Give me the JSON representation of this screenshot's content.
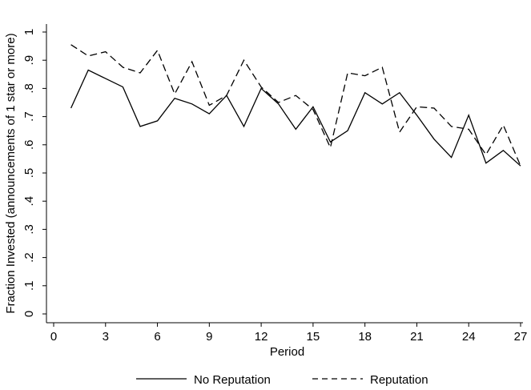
{
  "chart_data": {
    "type": "line",
    "xlabel": "Period",
    "ylabel": "Fraction Invested (announcements of 1 star or more)",
    "xlim": [
      0,
      27
    ],
    "ylim": [
      0,
      1
    ],
    "xticks": [
      0,
      3,
      6,
      9,
      12,
      15,
      18,
      21,
      24,
      27
    ],
    "yticks": [
      0,
      0.1,
      0.2,
      0.3,
      0.4,
      0.5,
      0.6,
      0.7,
      0.8,
      0.9,
      1
    ],
    "xtick_labels": [
      "0",
      "3",
      "6",
      "9",
      "12",
      "15",
      "18",
      "21",
      "24",
      "27"
    ],
    "ytick_labels": [
      "0",
      ".1",
      ".2",
      ".3",
      ".4",
      ".5",
      ".6",
      ".7",
      ".8",
      ".9",
      "1"
    ],
    "grid": false,
    "legend_position": "bottom",
    "x": [
      1,
      2,
      3,
      4,
      5,
      6,
      7,
      8,
      9,
      10,
      11,
      12,
      13,
      14,
      15,
      16,
      17,
      18,
      19,
      20,
      21,
      22,
      23,
      24,
      25,
      26,
      27
    ],
    "series": [
      {
        "name": "No Reputation",
        "style": "solid",
        "color": "#000000",
        "values": [
          0.73,
          0.865,
          0.835,
          0.805,
          0.665,
          0.685,
          0.765,
          0.745,
          0.71,
          0.775,
          0.665,
          0.8,
          0.745,
          0.655,
          0.735,
          0.61,
          0.65,
          0.785,
          0.745,
          0.785,
          0.705,
          0.62,
          0.555,
          0.705,
          0.535,
          0.58,
          0.525
        ]
      },
      {
        "name": "Reputation",
        "style": "dashed",
        "color": "#000000",
        "values": [
          0.955,
          0.915,
          0.93,
          0.875,
          0.855,
          0.935,
          0.78,
          0.895,
          0.74,
          0.775,
          0.9,
          0.805,
          0.75,
          0.775,
          0.725,
          0.59,
          0.855,
          0.845,
          0.875,
          0.645,
          0.735,
          0.73,
          0.665,
          0.655,
          0.565,
          0.67,
          0.525
        ]
      }
    ]
  }
}
